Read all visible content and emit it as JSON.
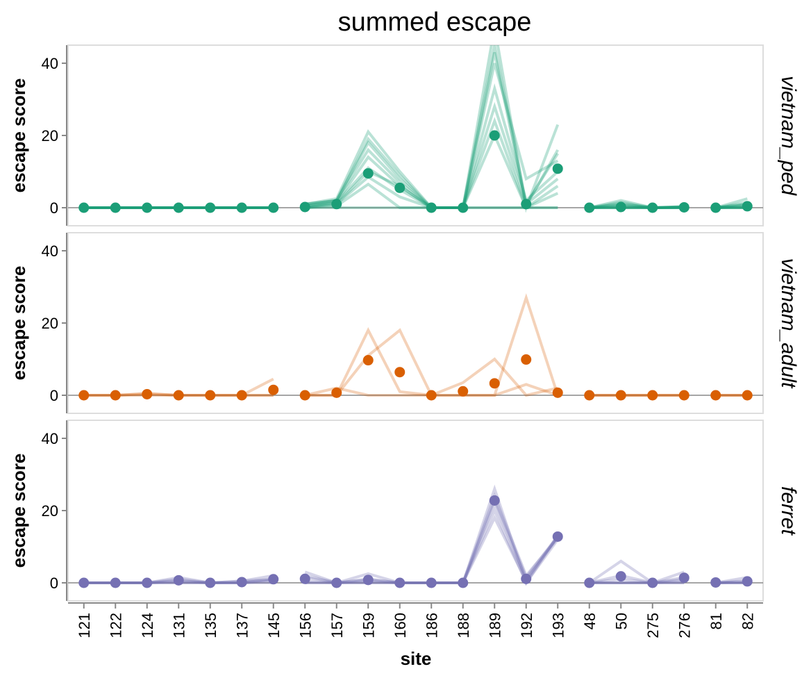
{
  "chart_data": {
    "type": "line",
    "title": "summed escape",
    "xlabel": "site",
    "ylabel": "escape score",
    "ylim": [
      -5,
      45
    ],
    "yticks": [
      0,
      20,
      40
    ],
    "grid": false,
    "categories": [
      "121",
      "122",
      "124",
      "131",
      "135",
      "137",
      "145",
      "156",
      "157",
      "159",
      "160",
      "186",
      "188",
      "189",
      "192",
      "193",
      "48",
      "50",
      "275",
      "276",
      "81",
      "82"
    ],
    "segments": [
      [
        0,
        6
      ],
      [
        7,
        15
      ],
      [
        16,
        19
      ],
      [
        20,
        21
      ]
    ],
    "facets": [
      {
        "name": "vietnam_ped",
        "color": "#1b9e77",
        "line_opacity": 0.3,
        "means": [
          0,
          0,
          0,
          0,
          0,
          0,
          0,
          0.2,
          1,
          9.5,
          5.5,
          0,
          0,
          20,
          1,
          10.8,
          0,
          0.2,
          0,
          0.1,
          0,
          0.4
        ],
        "replicates": [
          [
            0,
            0,
            0,
            0,
            0,
            0,
            0,
            0,
            0,
            0,
            0,
            0,
            0,
            0,
            0,
            0,
            0,
            0,
            0,
            0,
            0,
            0
          ],
          [
            0,
            0,
            0,
            0,
            0,
            0,
            0,
            0,
            0.5,
            6.5,
            0,
            0,
            0,
            0,
            0,
            0,
            0,
            0,
            0,
            0,
            0,
            0
          ],
          [
            0,
            0,
            0,
            0,
            0,
            0,
            0,
            0,
            1,
            8.5,
            3,
            0,
            0,
            20,
            0,
            4,
            0,
            0,
            0,
            0,
            0,
            0
          ],
          [
            0,
            0,
            0,
            0,
            0,
            0,
            0,
            0,
            1.5,
            11,
            5,
            0,
            0,
            24,
            0,
            6,
            0,
            0,
            0,
            0,
            0,
            0
          ],
          [
            0,
            0,
            0,
            0,
            0,
            0,
            0,
            0.5,
            1.5,
            14,
            6,
            0,
            0,
            28,
            1,
            8,
            0,
            0.5,
            0,
            0.2,
            0,
            0.5
          ],
          [
            0,
            0,
            0,
            0,
            0,
            0,
            0,
            0.5,
            2,
            16,
            7,
            0,
            0,
            33,
            2,
            10,
            0,
            1,
            0,
            0.2,
            0,
            1
          ],
          [
            0,
            0,
            0,
            0,
            0,
            0,
            0,
            1,
            2,
            18,
            8,
            0,
            0,
            40,
            8,
            13,
            0,
            1.5,
            0,
            0.3,
            0,
            1.5
          ],
          [
            0,
            0,
            0,
            0,
            0,
            0,
            0,
            1,
            2.5,
            21,
            10,
            0,
            0,
            45,
            1,
            15,
            0,
            2,
            0,
            0.3,
            0,
            2.5
          ],
          [
            0,
            0,
            0,
            0,
            0,
            0,
            0,
            1,
            2,
            19,
            9,
            0,
            0,
            50,
            0,
            23,
            0,
            1,
            0,
            0.2,
            0,
            1
          ],
          [
            0,
            0,
            0,
            0,
            0,
            0,
            0,
            0.5,
            1,
            10,
            6,
            0,
            0,
            43,
            0.5,
            16,
            0,
            0.5,
            0,
            0,
            0,
            0.5
          ]
        ]
      },
      {
        "name": "vietnam_adult",
        "color": "#d95f02",
        "line_opacity": 0.28,
        "means": [
          0,
          0,
          0.3,
          0,
          0,
          0,
          1.5,
          0,
          0.7,
          9.7,
          6.4,
          0,
          1.1,
          3.3,
          9.9,
          0.7,
          0,
          0,
          0,
          0,
          0,
          0
        ],
        "replicates": [
          [
            0,
            0,
            0.5,
            0,
            0,
            0,
            0,
            0,
            2,
            0,
            0,
            0,
            0,
            0,
            27,
            0,
            0,
            0,
            0,
            0,
            0,
            0
          ],
          [
            0,
            0,
            0,
            0,
            0,
            0,
            4.5,
            0,
            0,
            18,
            1,
            0,
            3.5,
            10,
            0,
            2,
            0,
            0,
            0,
            0,
            0,
            0
          ],
          [
            0,
            0,
            0.4,
            0,
            0,
            0,
            0,
            0,
            0,
            11,
            18,
            0,
            0,
            0,
            3,
            0,
            0,
            0,
            0,
            0,
            0,
            0
          ]
        ]
      },
      {
        "name": "ferret",
        "color": "#7570b3",
        "line_opacity": 0.3,
        "means": [
          0,
          0,
          0,
          0.7,
          0,
          0.2,
          1,
          1.1,
          0,
          0.8,
          0,
          0,
          0,
          22.8,
          1.1,
          12.8,
          0,
          1.8,
          0,
          1.4,
          0.1,
          0.4
        ],
        "replicates": [
          [
            0,
            0,
            0,
            0,
            0,
            0,
            0,
            3,
            0,
            2.5,
            0,
            0,
            0,
            26,
            0,
            13,
            0,
            6,
            0,
            3,
            0,
            1.5
          ],
          [
            0,
            0,
            0,
            1,
            0,
            0.5,
            2,
            2,
            0,
            1,
            0,
            0,
            0,
            24,
            2,
            12.5,
            0,
            2,
            0,
            1,
            0,
            0.5
          ],
          [
            0,
            0,
            0,
            1.5,
            0,
            0.5,
            1,
            1.5,
            0,
            1,
            0,
            0,
            0,
            23,
            1.5,
            13,
            0,
            1,
            0,
            1.5,
            0,
            0.5
          ],
          [
            0,
            0,
            0,
            0.5,
            0,
            0,
            1,
            0.5,
            0,
            0.5,
            0,
            0,
            0,
            22,
            1,
            12.5,
            0,
            0,
            0,
            0.5,
            0,
            0
          ],
          [
            0,
            0,
            0,
            0.5,
            0,
            0,
            1,
            0,
            0,
            0,
            0,
            0,
            0,
            20,
            0,
            12,
            0,
            0,
            0,
            0,
            0,
            0
          ],
          [
            0,
            0,
            0,
            0,
            0,
            0,
            0.5,
            0,
            0,
            0,
            0,
            0,
            0,
            18,
            0.5,
            13,
            0,
            0,
            0,
            0,
            0,
            0
          ]
        ]
      }
    ]
  }
}
